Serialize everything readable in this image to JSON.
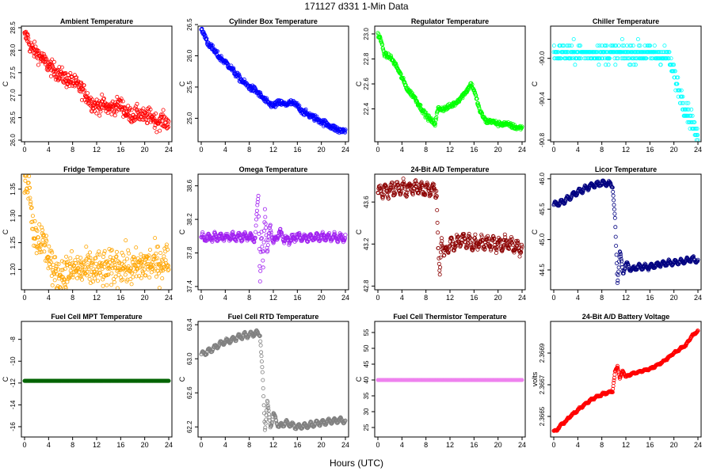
{
  "figure": {
    "title": "171127   d331   1-Min Data",
    "xlabel": "Hours (UTC)"
  },
  "chart_data": [
    {
      "type": "scatter",
      "title": "Ambient Temperature",
      "ylabel": "C",
      "color": "#ff0000",
      "xlim": [
        0,
        24
      ],
      "ylim": [
        26.0,
        28.5
      ],
      "xticks": [
        0,
        4,
        8,
        12,
        16,
        20,
        24
      ],
      "yticks": [
        26.0,
        26.5,
        27.0,
        27.5,
        28.0,
        28.5
      ],
      "yticklabels": [
        "26.0",
        "26.5",
        "27.0",
        "27.5",
        "28.0",
        "28.5"
      ],
      "x": [
        0,
        0.5,
        1,
        2,
        3,
        4,
        5,
        6,
        7,
        8,
        9,
        10,
        11,
        12,
        13,
        14,
        15,
        16,
        17,
        18,
        19,
        20,
        21,
        22,
        23,
        23.5,
        24
      ],
      "y": [
        28.3,
        28.3,
        28.05,
        27.95,
        27.8,
        27.65,
        27.55,
        27.45,
        27.35,
        27.3,
        27.2,
        27.05,
        26.85,
        26.75,
        26.8,
        26.7,
        26.75,
        26.8,
        26.6,
        26.55,
        26.6,
        26.5,
        26.55,
        26.4,
        26.45,
        26.4,
        26.4
      ],
      "noise": 0.18
    },
    {
      "type": "scatter",
      "title": "Cylinder Box Temperature",
      "ylabel": "C",
      "color": "#0000ff",
      "xlim": [
        0,
        24
      ],
      "ylim": [
        24.65,
        26.45
      ],
      "xticks": [
        0,
        4,
        8,
        12,
        16,
        20,
        24
      ],
      "yticks": [
        25.0,
        25.5,
        26.0,
        26.5
      ],
      "yticklabels": [
        "25.0",
        "25.5",
        "26.0",
        "26.5"
      ],
      "x": [
        0,
        0.5,
        1,
        2,
        3,
        4,
        5,
        6,
        7,
        8,
        9,
        10,
        11,
        12,
        13,
        14,
        15,
        16,
        17,
        18,
        19,
        20,
        21,
        22,
        23,
        24
      ],
      "y": [
        26.4,
        26.35,
        26.22,
        26.1,
        25.98,
        25.9,
        25.8,
        25.68,
        25.58,
        25.5,
        25.45,
        25.35,
        25.25,
        25.2,
        25.25,
        25.22,
        25.25,
        25.2,
        25.1,
        25.05,
        25.0,
        24.95,
        24.9,
        24.85,
        24.8,
        24.8
      ],
      "noise": 0.05
    },
    {
      "type": "scatter",
      "title": "Regulator Temperature",
      "ylabel": "C",
      "color": "#00ff00",
      "xlim": [
        0,
        24
      ],
      "ylim": [
        22.15,
        23.05
      ],
      "xticks": [
        0,
        4,
        8,
        12,
        16,
        20,
        24
      ],
      "yticks": [
        22.4,
        22.6,
        22.8,
        23.0
      ],
      "yticklabels": [
        "22.4",
        "22.6",
        "22.8",
        "23.0"
      ],
      "x": [
        0,
        0.5,
        1,
        1.5,
        2,
        3,
        4,
        5,
        6,
        7,
        8,
        9,
        9.5,
        10,
        11,
        12,
        13,
        14,
        15,
        15.5,
        16,
        17,
        18,
        19,
        20,
        21,
        22,
        23,
        24
      ],
      "y": [
        23.0,
        22.95,
        22.85,
        22.82,
        22.82,
        22.75,
        22.65,
        22.55,
        22.5,
        22.42,
        22.35,
        22.3,
        22.28,
        22.4,
        22.4,
        22.42,
        22.45,
        22.5,
        22.56,
        22.6,
        22.55,
        22.38,
        22.3,
        22.3,
        22.28,
        22.28,
        22.27,
        22.25,
        22.25
      ],
      "noise": 0.02
    },
    {
      "type": "scatter",
      "title": "Chiller Temperature",
      "ylabel": "C",
      "color": "#00ffff",
      "xlim": [
        0,
        24
      ],
      "ylim": [
        -90.8,
        -89.7
      ],
      "xticks": [
        0,
        4,
        8,
        12,
        16,
        20,
        24
      ],
      "yticks": [
        -90.8,
        -90.4,
        -90.0
      ],
      "yticklabels": [
        "-90.8",
        "-90.4",
        "-90.0"
      ],
      "x": [
        0,
        4,
        8,
        12,
        16,
        19,
        20,
        21,
        22,
        23,
        24
      ],
      "y": [
        -89.95,
        -89.95,
        -89.95,
        -89.95,
        -89.95,
        -89.98,
        -90.15,
        -90.35,
        -90.5,
        -90.6,
        -90.8
      ],
      "noise": 0.09,
      "quantize": 0.0625
    },
    {
      "type": "scatter",
      "title": "Fridge Temperature",
      "ylabel": "C",
      "color": "#ffa500",
      "xlim": [
        0,
        24
      ],
      "ylim": [
        1.165,
        1.375
      ],
      "xticks": [
        0,
        4,
        8,
        12,
        16,
        20,
        24
      ],
      "yticks": [
        1.2,
        1.25,
        1.3,
        1.35
      ],
      "yticklabels": [
        "1.20",
        "1.25",
        "1.30",
        "1.35"
      ],
      "x": [
        0,
        0.5,
        1,
        1.5,
        2,
        2.5,
        3,
        3.5,
        4,
        4.5,
        5,
        6,
        8,
        10,
        12,
        14,
        16,
        18,
        20,
        22,
        24
      ],
      "y": [
        1.36,
        1.37,
        1.34,
        1.27,
        1.26,
        1.26,
        1.25,
        1.24,
        1.23,
        1.21,
        1.19,
        1.19,
        1.2,
        1.2,
        1.2,
        1.2,
        1.21,
        1.2,
        1.21,
        1.21,
        1.22
      ],
      "noise": 0.035
    },
    {
      "type": "scatter",
      "title": "Omega Temperature",
      "ylabel": "C",
      "color": "#a020f0",
      "xlim": [
        0,
        24
      ],
      "ylim": [
        37.38,
        38.72
      ],
      "xticks": [
        0,
        4,
        8,
        12,
        16,
        20,
        24
      ],
      "yticks": [
        37.4,
        37.8,
        38.2,
        38.6
      ],
      "yticklabels": [
        "37.4",
        "37.8",
        "38.2",
        "38.6"
      ],
      "x": [
        0,
        2,
        4,
        6,
        8,
        9,
        9.5,
        9.8,
        10,
        10.3,
        10.6,
        11,
        11.5,
        12,
        13,
        14,
        16,
        18,
        20,
        22,
        24
      ],
      "y": [
        37.98,
        37.99,
        37.99,
        37.99,
        37.99,
        37.98,
        38.5,
        37.45,
        38.1,
        37.6,
        38.35,
        37.8,
        38.15,
        37.9,
        38.05,
        37.95,
        37.99,
        37.98,
        37.99,
        37.99,
        37.98
      ],
      "noise": 0.03,
      "wave": 0.035
    },
    {
      "type": "scatter",
      "title": "24-Bit A/D Temperature",
      "ylabel": "C",
      "color": "#8b0000",
      "xlim": [
        0,
        24
      ],
      "ylim": [
        42.78,
        43.85
      ],
      "xticks": [
        0,
        4,
        8,
        12,
        16,
        20,
        24
      ],
      "yticks": [
        42.8,
        43.2,
        43.6
      ],
      "yticklabels": [
        "42.8",
        "43.2",
        "43.6"
      ],
      "x": [
        0,
        2,
        4,
        6,
        8,
        9,
        9.8,
        10,
        10.3,
        10.6,
        11,
        12,
        13,
        14,
        16,
        18,
        20,
        22,
        24
      ],
      "y": [
        43.7,
        43.72,
        43.73,
        43.73,
        43.73,
        43.72,
        43.7,
        43.2,
        42.85,
        43.3,
        43.1,
        43.2,
        43.2,
        43.25,
        43.2,
        43.22,
        43.2,
        43.2,
        43.15
      ],
      "noise": 0.04,
      "wave": 0.05
    },
    {
      "type": "scatter",
      "title": "Licor Temperature",
      "ylabel": "C",
      "color": "#000080",
      "xlim": [
        0,
        24
      ],
      "ylim": [
        44.2,
        46.05
      ],
      "xticks": [
        0,
        4,
        8,
        12,
        16,
        20,
        24
      ],
      "yticks": [
        44.5,
        45.0,
        45.5,
        46.0
      ],
      "yticklabels": [
        "44.5",
        "45.0",
        "45.5",
        "46.0"
      ],
      "x": [
        0,
        1,
        2,
        3,
        4,
        5,
        6,
        7,
        8,
        9,
        9.8,
        10.2,
        10.6,
        11,
        11.5,
        12,
        13,
        14,
        16,
        18,
        20,
        22,
        23,
        24
      ],
      "y": [
        45.57,
        45.6,
        45.65,
        45.72,
        45.78,
        45.83,
        45.88,
        45.9,
        45.93,
        45.92,
        45.9,
        45.3,
        44.3,
        44.8,
        44.45,
        44.6,
        44.5,
        44.55,
        44.55,
        44.6,
        44.62,
        44.65,
        44.68,
        44.65
      ],
      "noise": 0.015,
      "wave": 0.04
    },
    {
      "type": "scatter",
      "title": "Fuel Cell MPT Temperature",
      "ylabel": "C",
      "color": "#006400",
      "xlim": [
        0,
        24
      ],
      "ylim": [
        -16.8,
        -6.5
      ],
      "xticks": [
        0,
        4,
        8,
        12,
        16,
        20,
        24
      ],
      "yticks": [
        -16,
        -14,
        -12,
        -10,
        -8
      ],
      "yticklabels": [
        "-16",
        "-14",
        "-12",
        "-10",
        "-8"
      ],
      "x": [
        0,
        24
      ],
      "y": [
        -11.8,
        -11.8
      ],
      "noise": 0
    },
    {
      "type": "scatter",
      "title": "Fuel Cell RTD Temperature",
      "ylabel": "C",
      "color": "#808080",
      "xlim": [
        0,
        24
      ],
      "ylim": [
        62.1,
        63.42
      ],
      "xticks": [
        0,
        4,
        8,
        12,
        16,
        20,
        24
      ],
      "yticks": [
        62.2,
        62.6,
        63.0,
        63.4
      ],
      "yticklabels": [
        "62.2",
        "62.6",
        "63.0",
        "63.4"
      ],
      "x": [
        0,
        1,
        2,
        3,
        4,
        5,
        6,
        7,
        8,
        9,
        9.8,
        10.2,
        10.6,
        11,
        11.5,
        12,
        13,
        14,
        16,
        18,
        20,
        22,
        23,
        24
      ],
      "y": [
        63.05,
        63.08,
        63.12,
        63.17,
        63.2,
        63.22,
        63.25,
        63.27,
        63.28,
        63.3,
        63.3,
        62.8,
        62.18,
        62.5,
        62.2,
        62.35,
        62.2,
        62.25,
        62.2,
        62.22,
        62.25,
        62.27,
        62.28,
        62.27
      ],
      "noise": 0.01,
      "wave": 0.03
    },
    {
      "type": "scatter",
      "title": "Fuel Cell Thermistor Temperature",
      "ylabel": "C",
      "color": "#ee82ee",
      "xlim": [
        0,
        24
      ],
      "ylim": [
        22.5,
        58
      ],
      "xticks": [
        0,
        4,
        8,
        12,
        16,
        20,
        24
      ],
      "yticks": [
        25,
        30,
        35,
        40,
        45,
        50,
        55
      ],
      "yticklabels": [
        "25",
        "30",
        "35",
        "40",
        "45",
        "50",
        "55"
      ],
      "x": [
        0,
        24
      ],
      "y": [
        40,
        40
      ],
      "noise": 0
    },
    {
      "type": "scatter",
      "title": "24-Bit A/D Battery Voltage",
      "ylabel": "volts",
      "color": "#ff0000",
      "xlim": [
        0,
        24
      ],
      "ylim": [
        2.36638,
        2.36709
      ],
      "xticks": [
        0,
        4,
        8,
        12,
        16,
        20,
        24
      ],
      "yticks": [
        2.3665,
        2.3667,
        2.3669
      ],
      "yticklabels": [
        "2.3665",
        "2.3667",
        "2.3669"
      ],
      "x": [
        0,
        0.5,
        1,
        2,
        3,
        4,
        5,
        6,
        7,
        8,
        9,
        9.8,
        10.2,
        10.6,
        11,
        11.5,
        12,
        13,
        14,
        15,
        16,
        18,
        20,
        22,
        23,
        24
      ],
      "y": [
        2.36641,
        2.36641,
        2.36644,
        2.36647,
        2.36651,
        2.36654,
        2.36657,
        2.3666,
        2.36662,
        2.36664,
        2.36665,
        2.36666,
        2.36678,
        2.36682,
        2.36674,
        2.36679,
        2.36675,
        2.36677,
        2.36678,
        2.36679,
        2.3668,
        2.36684,
        2.3669,
        2.36695,
        2.36701,
        2.36704
      ],
      "noise": 5e-06,
      "wave": 4e-06
    }
  ]
}
